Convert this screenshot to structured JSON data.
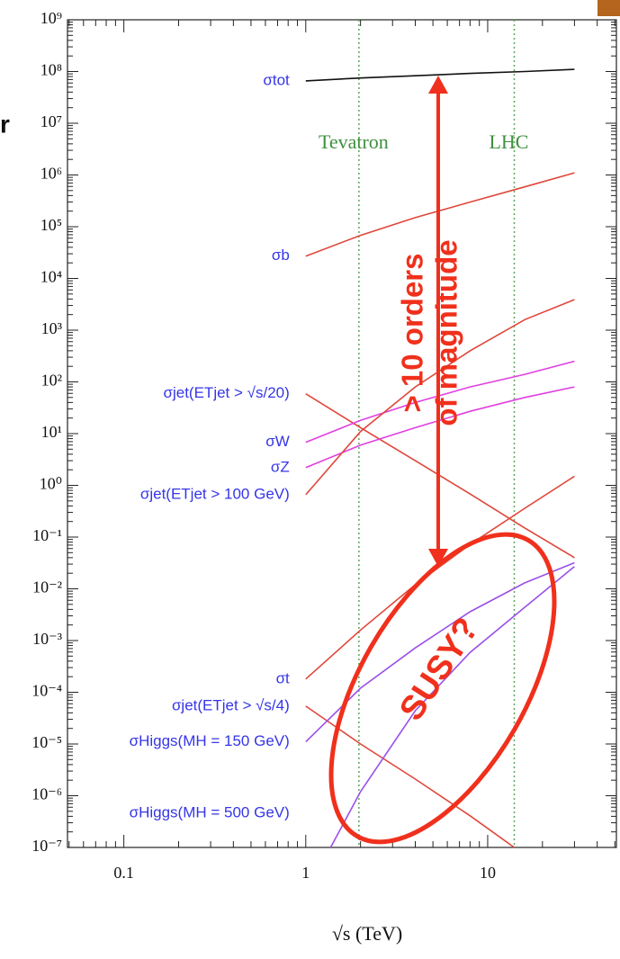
{
  "chart_data": {
    "type": "line",
    "log_x": true,
    "log_y": true,
    "xlabel": "√s   (TeV)",
    "xlim": [
      0.049,
      51
    ],
    "ylim": [
      1e-07,
      1000000000.0
    ],
    "xticks": [
      0.1,
      1,
      10
    ],
    "yticks": [
      {
        "value": 1000000000.0,
        "label": "10⁹"
      },
      {
        "value": 100000000.0,
        "label": "10⁸"
      },
      {
        "value": 10000000.0,
        "label": "10⁷"
      },
      {
        "value": 1000000.0,
        "label": "10⁶"
      },
      {
        "value": 100000.0,
        "label": "10⁵"
      },
      {
        "value": 10000.0,
        "label": "10⁴"
      },
      {
        "value": 1000.0,
        "label": "10³"
      },
      {
        "value": 100.0,
        "label": "10²"
      },
      {
        "value": 10.0,
        "label": "10¹"
      },
      {
        "value": 1,
        "label": "10⁰"
      },
      {
        "value": 0.1,
        "label": "10⁻¹"
      },
      {
        "value": 0.01,
        "label": "10⁻²"
      },
      {
        "value": 0.001,
        "label": "10⁻³"
      },
      {
        "value": 0.0001,
        "label": "10⁻⁴"
      },
      {
        "value": 1e-05,
        "label": "10⁻⁵"
      },
      {
        "value": 1e-06,
        "label": "10⁻⁶"
      },
      {
        "value": 1e-07,
        "label": "10⁻⁷"
      }
    ],
    "grid": false,
    "series": [
      {
        "name": "σtot",
        "color": "#111111",
        "x": [
          1,
          2,
          4,
          8,
          16,
          30
        ],
        "values": [
          66000000.0,
          75000000.0,
          83000000.0,
          92000000.0,
          100000000.0,
          110000000.0
        ]
      },
      {
        "name": "σb",
        "color": "#e0463a",
        "x": [
          1,
          2,
          4,
          8,
          16,
          30
        ],
        "values": [
          27000.0,
          68000.0,
          150000.0,
          300000.0,
          590000.0,
          1100000.0
        ]
      },
      {
        "name": "σjet(ETjet > √s/20)",
        "color": "#e0463a",
        "x": [
          1,
          2,
          4,
          8,
          16,
          30
        ],
        "values": [
          59,
          13,
          3,
          0.68,
          0.15,
          0.04
        ]
      },
      {
        "name": "σW",
        "color": "#e040e0",
        "x": [
          1,
          2,
          4,
          8,
          16,
          30
        ],
        "values": [
          6.8,
          18,
          40,
          80,
          140,
          250
        ]
      },
      {
        "name": "σZ",
        "color": "#e040e0",
        "x": [
          1,
          2,
          4,
          8,
          16,
          30
        ],
        "values": [
          2.2,
          6,
          13,
          27,
          50,
          80
        ]
      },
      {
        "name": "σjet(ETjet > 100 GeV)",
        "color": "#e0463a",
        "x": [
          1,
          2,
          4,
          8,
          16,
          30
        ],
        "values": [
          0.66,
          11,
          80,
          400,
          1600,
          3900
        ]
      },
      {
        "name": "σt",
        "color": "#e0463a",
        "x": [
          1,
          2,
          4,
          8,
          16,
          30
        ],
        "values": [
          0.00018,
          0.0016,
          0.012,
          0.072,
          0.36,
          1.5
        ]
      },
      {
        "name": "σjet(ETjet > √s/4)",
        "color": "#e0463a",
        "x": [
          1,
          2,
          4,
          8,
          14
        ],
        "values": [
          5.4e-05,
          1e-05,
          2.1e-06,
          4.1e-07,
          1e-07
        ]
      },
      {
        "name": "σHiggs(MH = 150 GeV)",
        "color": "#9a50e8",
        "x": [
          1,
          2,
          4,
          8,
          16,
          30
        ],
        "values": [
          1.1e-05,
          0.00012,
          0.00072,
          0.0036,
          0.013,
          0.032
        ]
      },
      {
        "name": "σHiggs(MH = 500 GeV)",
        "color": "#9a50e8",
        "x": [
          1.37,
          2,
          4,
          8,
          16,
          30
        ],
        "values": [
          1e-07,
          1.2e-06,
          4.4e-05,
          0.00059,
          0.0044,
          0.027
        ]
      }
    ],
    "reference_lines": [
      {
        "x": 1.96,
        "label": "Tevatron"
      },
      {
        "x": 14,
        "label": "LHC"
      }
    ],
    "arrow_label": [
      "> 10 orders",
      "of magnitude"
    ],
    "ellipse_label": "SUSY?",
    "edge_text": "r"
  }
}
